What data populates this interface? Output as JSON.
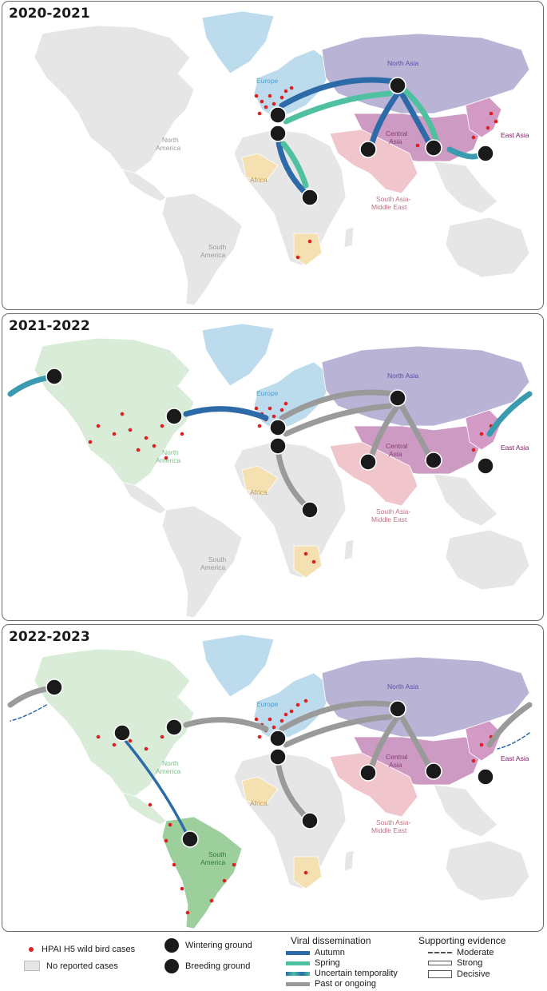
{
  "panels": [
    {
      "title": "2020-2021"
    },
    {
      "title": "2021-2022"
    },
    {
      "title": "2022-2023"
    }
  ],
  "regions": {
    "europe": "Europe",
    "north_asia": "North Asia",
    "central_asia_1": "Central",
    "central_asia_2": "Asia",
    "east_asia": "East Asia",
    "south_asia_1": "South Asia-",
    "south_asia_2": "Middle East",
    "africa": "Africa.",
    "north_america_1": "North",
    "north_america_2": "America",
    "south_america_1": "South",
    "south_america_2": "America"
  },
  "legend": {
    "cases_label": "HPAI H5 wild bird cases",
    "no_cases_label": "No reported cases",
    "wintering_label": "Wintering ground",
    "breeding_label": "Breeding ground",
    "viral_heading": "Viral dissemination",
    "autumn_label": "Autumn",
    "spring_label": "Spring",
    "uncertain_label": "Uncertain temporality",
    "past_label": "Past or ongoing",
    "evidence_heading": "Supporting evidence",
    "moderate_label": "Moderate",
    "strong_label": "Strong",
    "decisive_label": "Decisive"
  },
  "colors": {
    "autumn": "#2d6aa8",
    "spring": "#4fc0a0",
    "past": "#9a9a9a",
    "cases": "#e02020",
    "europe": "#bcdcee",
    "north_asia": "#b9b3d6",
    "east_asia": "#d49ac6",
    "central_asia": "#cc9ac2",
    "south_asia": "#f0c6cc",
    "africa": "#f4e0b0",
    "north_america": "#d8ecd8",
    "south_america": "#9ccf9c",
    "land": "#e6e6e6"
  },
  "icon_names": [
    "wintering-ground-icon",
    "breeding-ground-icon",
    "case-dot-icon"
  ]
}
